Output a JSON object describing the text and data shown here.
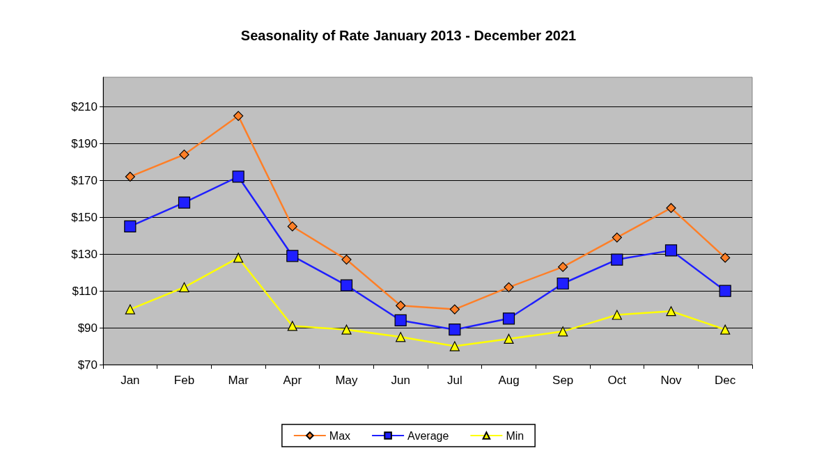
{
  "chart_data": {
    "type": "line",
    "title": "Seasonality of Rate January 2013 - December 2021",
    "categories": [
      "Jan",
      "Feb",
      "Mar",
      "Apr",
      "May",
      "Jun",
      "Jul",
      "Aug",
      "Sep",
      "Oct",
      "Nov",
      "Dec"
    ],
    "series": [
      {
        "name": "Max",
        "color": "#ff7f27",
        "marker": "diamond",
        "values": [
          172,
          184,
          205,
          145,
          127,
          102,
          100,
          112,
          123,
          139,
          155,
          128
        ]
      },
      {
        "name": "Average",
        "color": "#1f1fff",
        "marker": "square",
        "values": [
          145,
          158,
          172,
          129,
          113,
          94,
          89,
          95,
          114,
          127,
          132,
          110
        ]
      },
      {
        "name": "Min",
        "color": "#ffff00",
        "marker": "triangle",
        "values": [
          100,
          112,
          128,
          91,
          89,
          85,
          80,
          84,
          88,
          97,
          99,
          89
        ]
      }
    ],
    "ylim": [
      70,
      226
    ],
    "yticks": [
      {
        "value": 70,
        "label": "$70"
      },
      {
        "value": 90,
        "label": "$90"
      },
      {
        "value": 110,
        "label": "$110"
      },
      {
        "value": 130,
        "label": "$130"
      },
      {
        "value": 150,
        "label": "$150"
      },
      {
        "value": 170,
        "label": "$170"
      },
      {
        "value": 190,
        "label": "$190"
      },
      {
        "value": 210,
        "label": "$210"
      }
    ],
    "grid": "y",
    "legend": "bottom"
  }
}
